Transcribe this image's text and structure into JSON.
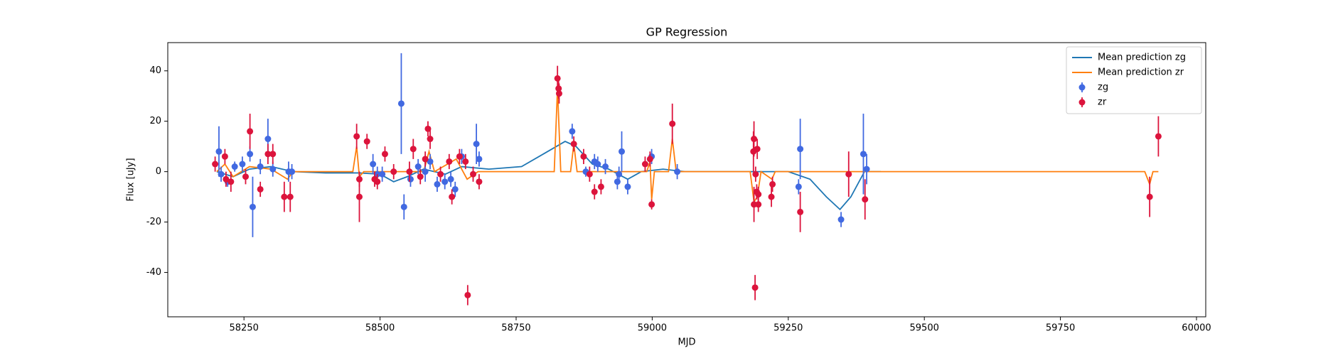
{
  "chart_data": {
    "type": "line",
    "title": "GP Regression",
    "xlabel": "MJD",
    "ylabel": "Flux [uJy]",
    "xlim": [
      58110,
      60017
    ],
    "ylim": [
      -57.6,
      51.2
    ],
    "xticks": [
      58250,
      58500,
      58750,
      59000,
      59250,
      59500,
      59750,
      60000
    ],
    "yticks": [
      -40,
      -20,
      0,
      20,
      40
    ],
    "legend": "upper right",
    "series": [
      {
        "name": "Mean prediction zg",
        "type": "line",
        "color": "#1f77b4",
        "x": [
          58200,
          58230,
          58260,
          58300,
          58340,
          58400,
          58460,
          58500,
          58525,
          58550,
          58580,
          58620,
          58650,
          58700,
          58760,
          58800,
          58840,
          58860,
          58890,
          58920,
          58955,
          58980,
          59020,
          59060,
          59150,
          59250,
          59290,
          59320,
          59345,
          59365,
          59390,
          59420
        ],
        "values": [
          0,
          -2,
          1,
          2,
          0,
          -0.5,
          -0.5,
          -1,
          -4,
          -2,
          1,
          -1,
          2,
          1,
          2,
          7,
          12,
          10,
          3,
          1,
          -3,
          0,
          1,
          0,
          0,
          0,
          -3,
          -10,
          -15,
          -10,
          0,
          0
        ]
      },
      {
        "name": "Mean prediction zr",
        "type": "line",
        "color": "#ff7f0e",
        "x": [
          58200,
          58215,
          58230,
          58260,
          58300,
          58330,
          58340,
          58450,
          58457,
          58462,
          58470,
          58580,
          58590,
          58600,
          58640,
          58660,
          58680,
          58820,
          58826,
          58832,
          58850,
          58856,
          58862,
          58990,
          58996,
          58999,
          59004,
          59030,
          59037,
          59044,
          59180,
          59187,
          59193,
          59200,
          59220,
          59226,
          59905,
          59914,
          59920,
          59930
        ],
        "values": [
          0,
          3,
          -2,
          2,
          1,
          -3,
          0,
          0,
          10,
          -2,
          0,
          0,
          8,
          0,
          5,
          -3,
          0,
          0,
          33,
          0,
          0,
          11,
          0,
          0,
          4,
          -11,
          0,
          0,
          13,
          0,
          0,
          -12,
          -10,
          0,
          -3,
          0,
          0,
          -5,
          0,
          0
        ]
      },
      {
        "name": "zg",
        "type": "errorbar",
        "color": "#4169e1",
        "x": [
          58204,
          58208,
          58220,
          58233,
          58247,
          58261,
          58266,
          58280,
          58294,
          58303,
          58332,
          58338,
          58487,
          58495,
          58504,
          58539,
          58544,
          58556,
          58570,
          58583,
          58592,
          58605,
          58619,
          58630,
          58638,
          58650,
          58677,
          58682,
          58853,
          58878,
          58894,
          58900,
          58914,
          58936,
          58939,
          58944,
          58955,
          58999,
          59046,
          59269,
          59272,
          59347,
          59388,
          59394
        ],
        "values": [
          8,
          -1,
          -4,
          2,
          3,
          7,
          -14,
          2,
          13,
          1,
          0,
          0,
          3,
          -1,
          -1,
          27,
          -14,
          -3,
          2,
          0,
          4,
          -5,
          -4,
          -3,
          -7,
          6,
          11,
          5,
          16,
          0,
          4,
          3,
          2,
          -4,
          -1,
          8,
          -6,
          6,
          0,
          -6,
          9,
          -19,
          7,
          1
        ],
        "errors": [
          10,
          3,
          2,
          2,
          3,
          3,
          12,
          3,
          8,
          3,
          4,
          3,
          4,
          3,
          3,
          20,
          5,
          3,
          3,
          4,
          3,
          3,
          3,
          3,
          3,
          3,
          8,
          3,
          3,
          2,
          3,
          3,
          3,
          3,
          3,
          8,
          3,
          3,
          3,
          3,
          12,
          3,
          16,
          6
        ]
      },
      {
        "name": "zr",
        "type": "errorbar",
        "color": "#dc143c",
        "x": [
          58197,
          58215,
          58217,
          58226,
          58253,
          58261,
          58280,
          58294,
          58303,
          58324,
          58335,
          58457,
          58462,
          58462,
          58476,
          58490,
          58495,
          58509,
          58525,
          58554,
          58561,
          58574,
          58583,
          58588,
          58592,
          58611,
          58627,
          58632,
          58646,
          58657,
          58661,
          58671,
          58682,
          58826,
          58828,
          58829,
          58856,
          58874,
          58885,
          58894,
          58906,
          58987,
          58996,
          58999,
          59037,
          59186,
          59187,
          59187,
          59189,
          59190,
          59192,
          59193,
          59195,
          59195,
          59219,
          59221,
          59272,
          59361,
          59391,
          59914,
          59930
        ],
        "values": [
          3,
          6,
          -3,
          -4,
          -2,
          16,
          -7,
          7,
          7,
          -10,
          -10,
          14,
          -3,
          -10,
          12,
          -3,
          -4,
          7,
          0,
          0,
          9,
          -2,
          5,
          17,
          13,
          -1,
          4,
          -10,
          6,
          4,
          -49,
          -1,
          -4,
          37,
          33,
          31,
          11,
          6,
          -1,
          -8,
          -6,
          3,
          5,
          -13,
          19,
          8,
          13,
          -13,
          -46,
          -1,
          -8,
          9,
          -9,
          -13,
          -10,
          -5,
          -16,
          -1,
          -11,
          -10,
          14
        ],
        "errors": [
          3,
          3,
          3,
          4,
          3,
          7,
          3,
          4,
          4,
          6,
          6,
          5,
          3,
          10,
          3,
          3,
          3,
          3,
          3,
          4,
          4,
          3,
          3,
          3,
          4,
          3,
          3,
          3,
          3,
          3,
          4,
          3,
          3,
          5,
          4,
          4,
          3,
          3,
          3,
          3,
          3,
          3,
          3,
          2,
          8,
          8,
          7,
          7,
          5,
          3,
          3,
          4,
          3,
          3,
          4,
          3,
          8,
          9,
          8,
          8,
          8
        ]
      }
    ]
  }
}
